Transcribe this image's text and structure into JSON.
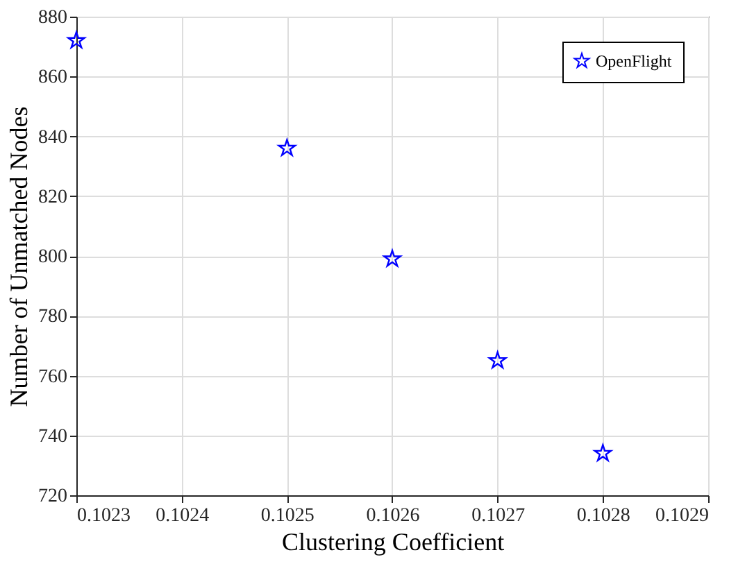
{
  "chart_data": {
    "type": "scatter",
    "xlabel": "Clustering Coefficient",
    "ylabel": "Number of Unmatched Nodes",
    "x": [
      0.1023,
      0.1025,
      0.1026,
      0.1027,
      0.1028
    ],
    "series": [
      {
        "name": "OpenFlight",
        "color": "#0000ff",
        "values": [
          872,
          836,
          799,
          765,
          734
        ]
      }
    ],
    "xlim": [
      0.1023,
      0.1029
    ],
    "xticks": [
      0.1023,
      0.1024,
      0.1025,
      0.1026,
      0.1027,
      0.1028,
      0.1029
    ],
    "ylim": [
      720,
      880
    ],
    "yticks": [
      720,
      740,
      760,
      780,
      800,
      820,
      840,
      860,
      880
    ],
    "grid": true,
    "legend": "top right",
    "marker": "star"
  }
}
